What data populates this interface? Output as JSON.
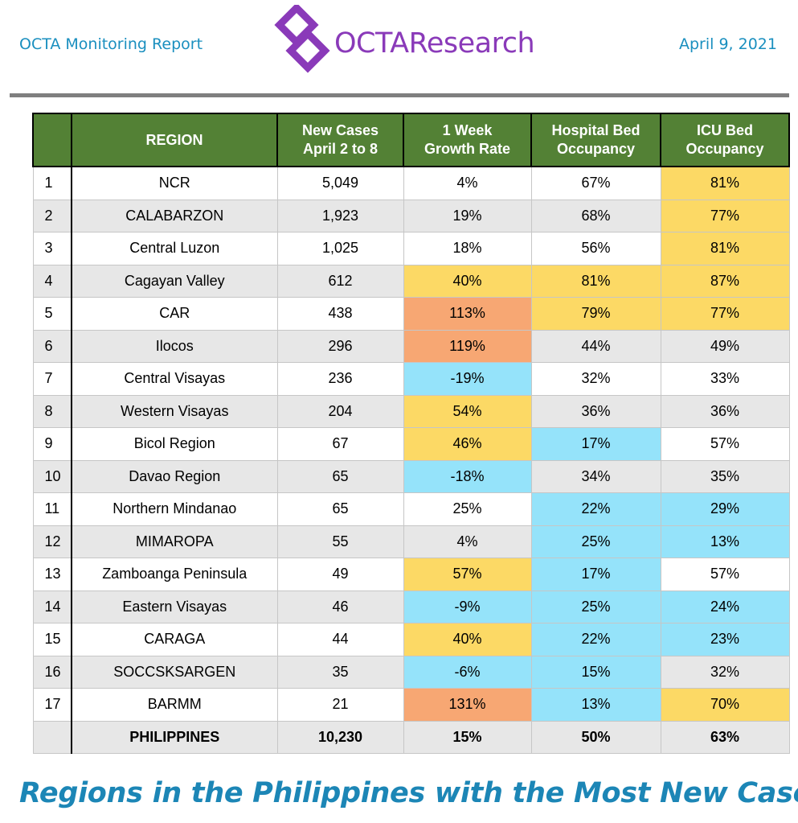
{
  "header": {
    "left_text": "OCTA Monitoring Report",
    "logo_text": "OCTAResearch",
    "date": "April 9, 2021"
  },
  "colors": {
    "header_green": "#538135",
    "yellow": "#fcd965",
    "orange": "#f7a773",
    "blue": "#95e3fa",
    "brand_purple": "#8a3ab9",
    "title_blue": "#1c86b6"
  },
  "table": {
    "columns": [
      "",
      "REGION",
      "New Cases\nApril 2 to 8",
      "1 Week\nGrowth Rate",
      "Hospital  Bed\nOccupancy",
      "ICU Bed\nOccupancy"
    ],
    "rows": [
      {
        "n": "1",
        "region": "NCR",
        "cases": "5,049",
        "growth": "4%",
        "hosp": "67%",
        "icu": "81%",
        "c": [
          "",
          "",
          "yellow"
        ]
      },
      {
        "n": "2",
        "region": "CALABARZON",
        "cases": "1,923",
        "growth": "19%",
        "hosp": "68%",
        "icu": "77%",
        "c": [
          "",
          "",
          "yellow"
        ]
      },
      {
        "n": "3",
        "region": "Central Luzon",
        "cases": "1,025",
        "growth": "18%",
        "hosp": "56%",
        "icu": "81%",
        "c": [
          "",
          "",
          "yellow"
        ]
      },
      {
        "n": "4",
        "region": "Cagayan Valley",
        "cases": "612",
        "growth": "40%",
        "hosp": "81%",
        "icu": "87%",
        "c": [
          "yellow",
          "yellow",
          "yellow"
        ]
      },
      {
        "n": "5",
        "region": "CAR",
        "cases": "438",
        "growth": "113%",
        "hosp": "79%",
        "icu": "77%",
        "c": [
          "orange",
          "yellow",
          "yellow"
        ]
      },
      {
        "n": "6",
        "region": "Ilocos",
        "cases": "296",
        "growth": "119%",
        "hosp": "44%",
        "icu": "49%",
        "c": [
          "orange",
          "",
          ""
        ]
      },
      {
        "n": "7",
        "region": "Central Visayas",
        "cases": "236",
        "growth": "-19%",
        "hosp": "32%",
        "icu": "33%",
        "c": [
          "blue",
          "",
          ""
        ]
      },
      {
        "n": "8",
        "region": "Western Visayas",
        "cases": "204",
        "growth": "54%",
        "hosp": "36%",
        "icu": "36%",
        "c": [
          "yellow",
          "",
          ""
        ]
      },
      {
        "n": "9",
        "region": "Bicol Region",
        "cases": "67",
        "growth": "46%",
        "hosp": "17%",
        "icu": "57%",
        "c": [
          "yellow",
          "blue",
          ""
        ]
      },
      {
        "n": "10",
        "region": "Davao Region",
        "cases": "65",
        "growth": "-18%",
        "hosp": "34%",
        "icu": "35%",
        "c": [
          "blue",
          "",
          ""
        ]
      },
      {
        "n": "11",
        "region": "Northern Mindanao",
        "cases": "65",
        "growth": "25%",
        "hosp": "22%",
        "icu": "29%",
        "c": [
          "",
          "blue",
          "blue"
        ]
      },
      {
        "n": "12",
        "region": "MIMAROPA",
        "cases": "55",
        "growth": "4%",
        "hosp": "25%",
        "icu": "13%",
        "c": [
          "",
          "blue",
          "blue"
        ]
      },
      {
        "n": "13",
        "region": "Zamboanga Peninsula",
        "cases": "49",
        "growth": "57%",
        "hosp": "17%",
        "icu": "57%",
        "c": [
          "yellow",
          "blue",
          ""
        ]
      },
      {
        "n": "14",
        "region": "Eastern Visayas",
        "cases": "46",
        "growth": "-9%",
        "hosp": "25%",
        "icu": "24%",
        "c": [
          "blue",
          "blue",
          "blue"
        ]
      },
      {
        "n": "15",
        "region": "CARAGA",
        "cases": "44",
        "growth": "40%",
        "hosp": "22%",
        "icu": "23%",
        "c": [
          "yellow",
          "blue",
          "blue"
        ]
      },
      {
        "n": "16",
        "region": "SOCCSKSARGEN",
        "cases": "35",
        "growth": "-6%",
        "hosp": "15%",
        "icu": "32%",
        "c": [
          "blue",
          "blue",
          ""
        ]
      },
      {
        "n": "17",
        "region": "BARMM",
        "cases": "21",
        "growth": "131%",
        "hosp": "13%",
        "icu": "70%",
        "c": [
          "orange",
          "blue",
          "yellow"
        ]
      }
    ],
    "total": {
      "n": "",
      "region": "PHILIPPINES",
      "cases": "10,230",
      "growth": "15%",
      "hosp": "50%",
      "icu": "63%"
    }
  },
  "footer_title": "Regions in the Philippines with the Most New Cases"
}
